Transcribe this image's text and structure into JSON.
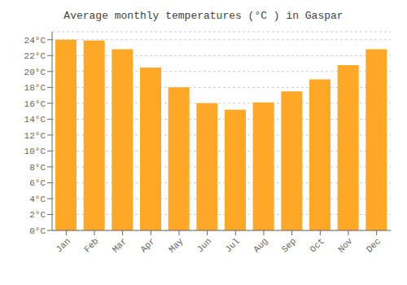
{
  "chart_data": {
    "type": "bar",
    "title": "Average monthly temperatures (°C ) in Gaspar",
    "categories": [
      "Jan",
      "Feb",
      "Mar",
      "Apr",
      "May",
      "Jun",
      "Jul",
      "Aug",
      "Sep",
      "Oct",
      "Nov",
      "Dec"
    ],
    "values": [
      24.0,
      23.9,
      22.8,
      20.5,
      18.0,
      16.0,
      15.2,
      16.1,
      17.5,
      19.0,
      20.8,
      22.8
    ],
    "color": "#FFA726",
    "ylim": [
      0,
      25
    ],
    "yticks": [
      {
        "value": 0,
        "label": "0°C"
      },
      {
        "value": 2,
        "label": "2°C"
      },
      {
        "value": 4,
        "label": "4°C"
      },
      {
        "value": 6,
        "label": "6°C"
      },
      {
        "value": 8,
        "label": "8°C"
      },
      {
        "value": 10,
        "label": "10°C"
      },
      {
        "value": 12,
        "label": "12°C"
      },
      {
        "value": 14,
        "label": "14°C"
      },
      {
        "value": 16,
        "label": "16°C"
      },
      {
        "value": 18,
        "label": "18°C"
      },
      {
        "value": 20,
        "label": "20°C"
      },
      {
        "value": 22,
        "label": "22°C"
      },
      {
        "value": 24,
        "label": "24°C"
      }
    ],
    "grid": true
  }
}
